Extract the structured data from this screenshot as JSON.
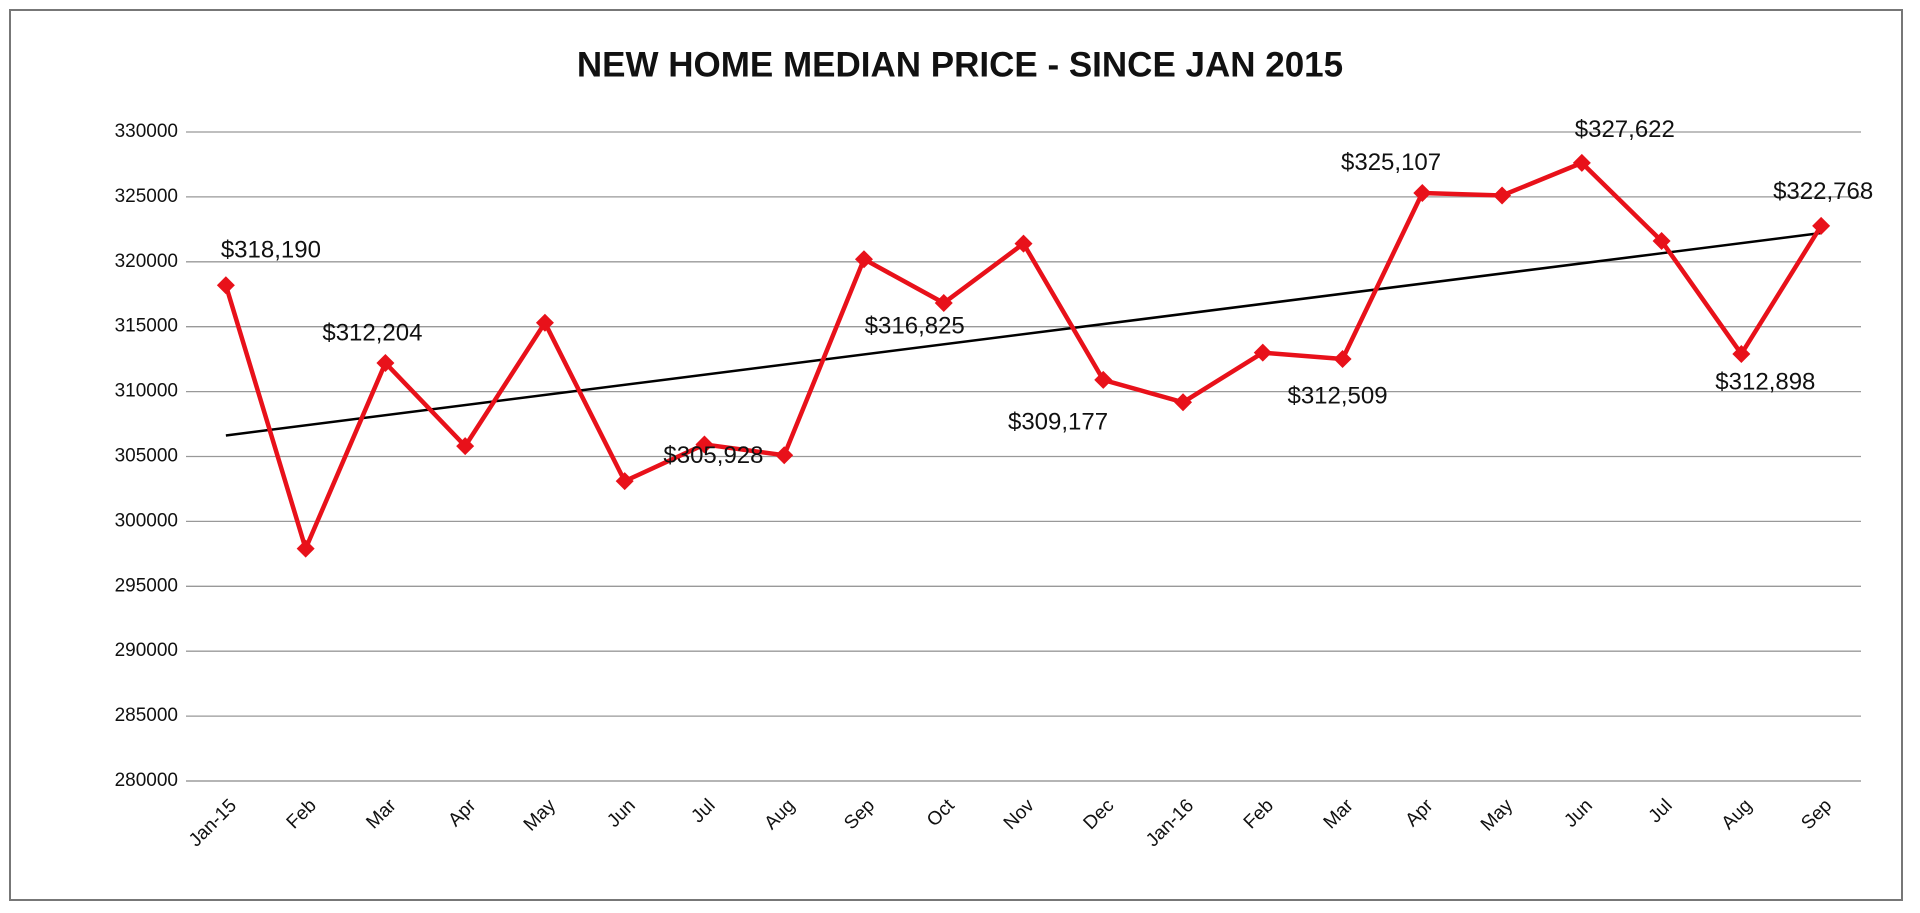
{
  "chart_data": {
    "type": "line",
    "title": "NEW HOME MEDIAN PRICE - SINCE JAN 2015",
    "categories": [
      "Jan-15",
      "Feb",
      "Mar",
      "Apr",
      "May",
      "Jun",
      "Jul",
      "Aug",
      "Sep",
      "Oct",
      "Nov",
      "Dec",
      "Jan-16",
      "Feb",
      "Mar",
      "Apr",
      "May",
      "Jun",
      "Jul",
      "Aug",
      "Sep"
    ],
    "series": [
      {
        "color": "#e8111a",
        "values": [
          318190,
          297900,
          312204,
          305800,
          315300,
          303100,
          305928,
          305100,
          320200,
          316825,
          321400,
          310900,
          309177,
          313000,
          312509,
          325300,
          325107,
          327622,
          321600,
          312898,
          322768
        ],
        "value_labels": [
          "$318,190",
          null,
          "$312,204",
          null,
          null,
          null,
          "$305,928",
          null,
          null,
          "$316,825",
          null,
          null,
          "$309,177",
          null,
          "$312,509",
          null,
          "$325,107",
          "$327,622",
          null,
          "$312,898",
          "$322,768"
        ]
      }
    ],
    "ylim": [
      280000,
      330000
    ],
    "yticks": [
      280000,
      285000,
      290000,
      295000,
      300000,
      305000,
      310000,
      315000,
      320000,
      325000,
      330000
    ],
    "grid": true,
    "trendline": true,
    "trendline_color": "#000000"
  }
}
